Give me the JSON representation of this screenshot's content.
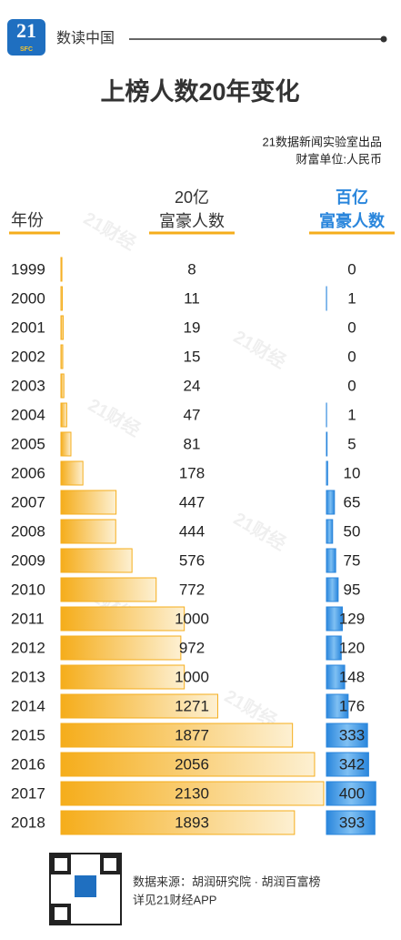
{
  "header": {
    "logo": "21",
    "logo_sub": "SFC",
    "section": "数读中国"
  },
  "chart_data": {
    "type": "bar",
    "title": "上榜人数20年变化",
    "credits": [
      "21数据新闻实验室出品",
      "财富单位:人民币"
    ],
    "category_label": "年份",
    "categories": [
      "1999",
      "2000",
      "2001",
      "2002",
      "2003",
      "2004",
      "2005",
      "2006",
      "2007",
      "2008",
      "2009",
      "2010",
      "2011",
      "2012",
      "2013",
      "2014",
      "2015",
      "2016",
      "2017",
      "2018"
    ],
    "series": [
      {
        "name": "20亿\n富豪人数",
        "color": "#f5ad1b",
        "values": [
          8,
          11,
          19,
          15,
          24,
          47,
          81,
          178,
          447,
          444,
          576,
          772,
          1000,
          972,
          1000,
          1271,
          1877,
          2056,
          2130,
          1893
        ]
      },
      {
        "name": "百亿\n富豪人数",
        "color": "#2a86dc",
        "values": [
          0,
          1,
          0,
          0,
          0,
          1,
          5,
          10,
          65,
          50,
          75,
          95,
          129,
          120,
          148,
          176,
          333,
          342,
          400,
          393
        ]
      }
    ],
    "watermark": "21财经"
  },
  "footer": {
    "source": "数据来源：胡润研究院 · 胡润百富榜",
    "note": "详见21财经APP"
  }
}
